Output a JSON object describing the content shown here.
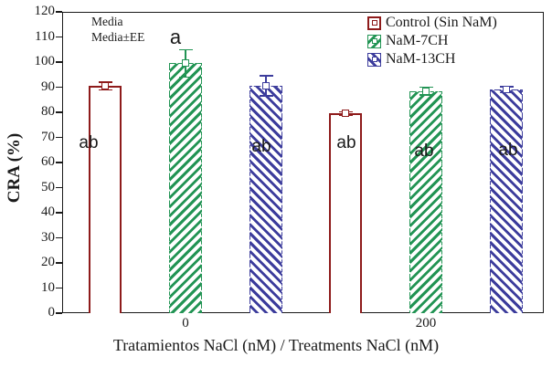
{
  "chart_data": {
    "type": "bar",
    "title": "",
    "xlabel": "Tratamientos NaCl (nM) / Treatments NaCl (nM)",
    "ylabel": "CRA (%)",
    "ylim": [
      0,
      120
    ],
    "ytick_step": 10,
    "ytick_labels": [
      "0",
      "10",
      "20",
      "30",
      "40",
      "50",
      "60",
      "70",
      "80",
      "90",
      "100",
      "110",
      "120"
    ],
    "categories": [
      "0",
      "200"
    ],
    "grid": false,
    "error_note": {
      "line1": "Media",
      "line2": "Media±EE"
    },
    "legend": {
      "position": "top-right-inside",
      "items": [
        {
          "label": "Control (Sin NaM)",
          "color": "#8E1B1B",
          "pattern": "plain"
        },
        {
          "label": "NaM-7CH",
          "color": "#229454",
          "pattern": "diagonal-up"
        },
        {
          "label": "NaM-13CH",
          "color": "#3C3C9C",
          "pattern": "diagonal-down"
        }
      ]
    },
    "series": [
      {
        "name": "Control (Sin NaM)",
        "color": "#8E1B1B",
        "pattern": "plain",
        "values": [
          90.5,
          79.5
        ],
        "std_errors": [
          1.5,
          0.7
        ],
        "sig_letters": [
          "ab",
          "ab"
        ],
        "letter_placement": [
          "inside",
          "inside"
        ]
      },
      {
        "name": "NaM-7CH",
        "color": "#229454",
        "pattern": "diagonal-up",
        "values": [
          99.5,
          88.5
        ],
        "std_errors": [
          5.5,
          1.5
        ],
        "sig_letters": [
          "a",
          "ab"
        ],
        "letter_placement": [
          "above",
          "inside"
        ]
      },
      {
        "name": "NaM-13CH",
        "color": "#3C3C9C",
        "pattern": "diagonal-down",
        "values": [
          90.5,
          89.0
        ],
        "std_errors": [
          4.0,
          1.2
        ],
        "sig_letters": [
          "ab",
          "ab"
        ],
        "letter_placement": [
          "inside",
          "inside"
        ]
      }
    ],
    "axis_color": "#1a1a1a"
  }
}
